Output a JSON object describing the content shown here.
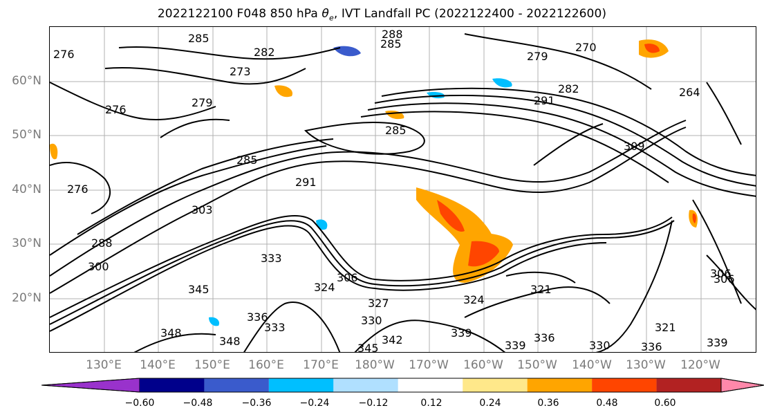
{
  "title": "2022122100 F048 850 hPa θe, IVT Landfall PC (2022122400 - 2022122600)",
  "map": {
    "lat_labels": [
      "60°N",
      "50°N",
      "40°N",
      "30°N",
      "20°N"
    ],
    "lon_labels": [
      "130°E",
      "140°E",
      "150°E",
      "160°E",
      "170°E",
      "180°W",
      "170°W",
      "160°W",
      "150°W",
      "140°W",
      "130°W",
      "120°W"
    ],
    "contour_labels": [
      "276",
      "285",
      "288",
      "285",
      "282",
      "279",
      "270",
      "273",
      "279",
      "276",
      "264",
      "282",
      "291",
      "285",
      "309",
      "285",
      "291",
      "303",
      "276",
      "288",
      "300",
      "306",
      "333",
      "324",
      "306",
      "327",
      "324",
      "345",
      "348",
      "330",
      "336",
      "333",
      "348",
      "339",
      "342",
      "345",
      "339",
      "336",
      "330",
      "336",
      "306",
      "321",
      "339",
      "321"
    ]
  },
  "colorbar": {
    "tick_labels": [
      "−0.60",
      "−0.48",
      "−0.36",
      "−0.24",
      "−0.12",
      "0.12",
      "0.24",
      "0.36",
      "0.48",
      "0.60"
    ],
    "colors": [
      "#9932cc",
      "#00008b",
      "#3a5bcc",
      "#00bfff",
      "#b0e0ff",
      "#ffffff",
      "#ffe88a",
      "#ffa500",
      "#ff4500",
      "#b22222",
      "#ff88aa"
    ]
  }
}
